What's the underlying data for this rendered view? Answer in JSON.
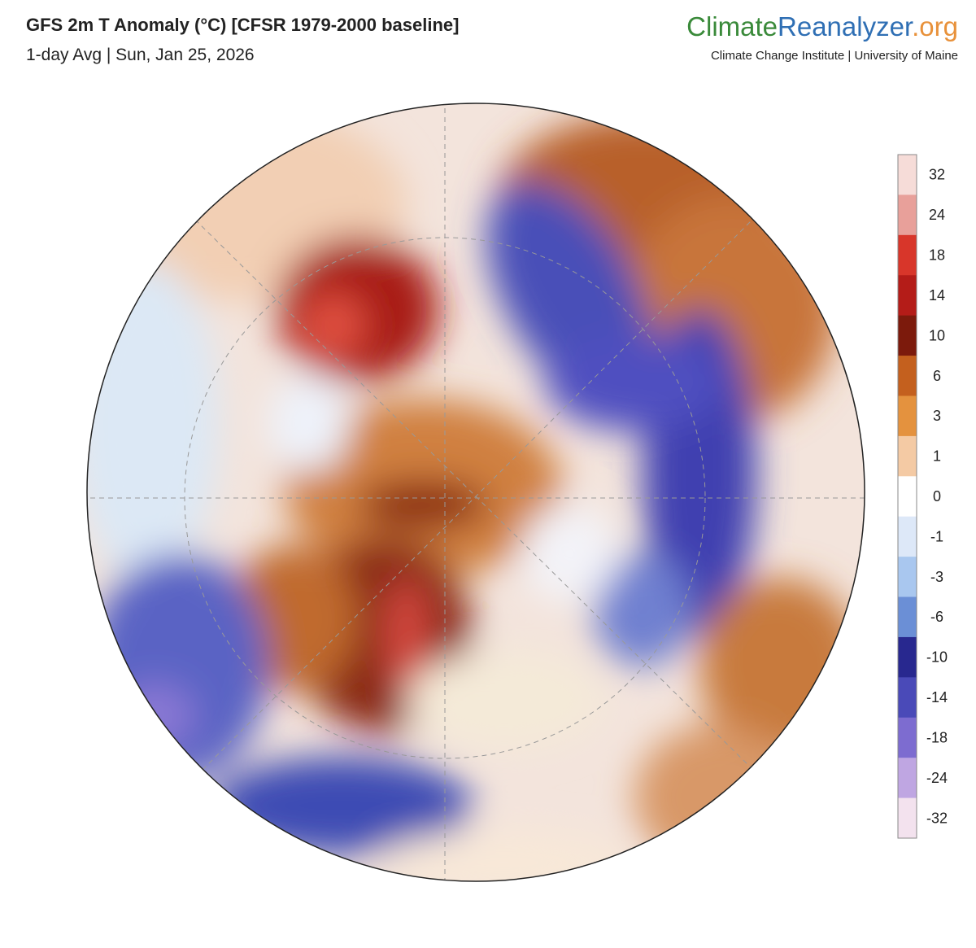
{
  "header": {
    "title": "GFS 2m T Anomaly (°C) [CFSR 1979-2000 baseline]",
    "subtitle": "1-day Avg | Sun, Jan 25, 2026"
  },
  "logo": {
    "part1": "Climate",
    "part2": "Reanalyzer",
    "part3": ".org",
    "tagline": "Climate Change Institute | University of Maine"
  },
  "colorbar": {
    "ticks": [
      32,
      24,
      18,
      14,
      10,
      6,
      3,
      1,
      0,
      -1,
      -3,
      -6,
      -10,
      -14,
      -18,
      -24,
      -32
    ],
    "colors": [
      "#f6dcd8",
      "#e8a09a",
      "#d8362a",
      "#b41c18",
      "#7c1a0c",
      "#c4601e",
      "#e4923e",
      "#f4caa4",
      "#ffffff",
      "#dde8f8",
      "#a9c7ef",
      "#6b8fd6",
      "#28288f",
      "#4a4ab8",
      "#7d6cd0",
      "#bfa6e2",
      "#f3e2ee"
    ]
  }
}
